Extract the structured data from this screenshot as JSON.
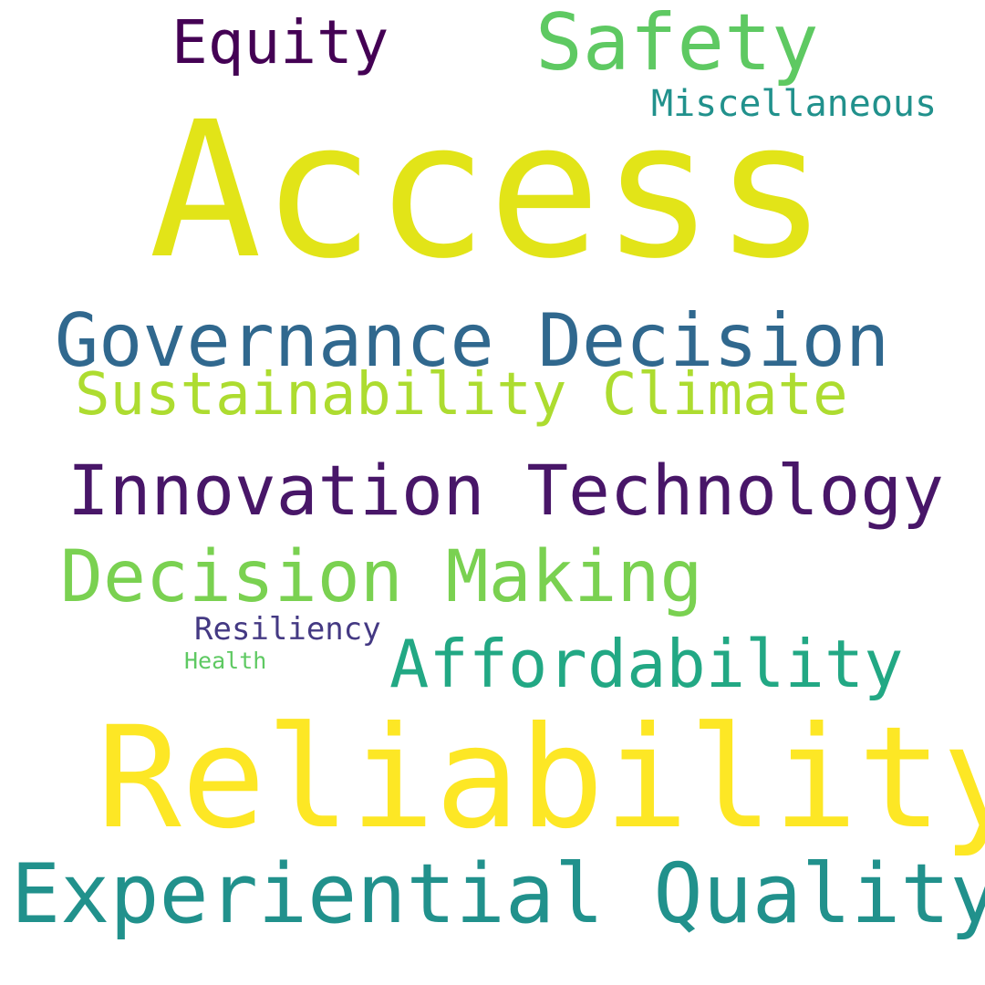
{
  "words": {
    "access": {
      "text": "Access",
      "color": "#e2e418"
    },
    "equity": {
      "text": "Equity",
      "color": "#440154"
    },
    "safety": {
      "text": "Safety",
      "color": "#5ec962"
    },
    "misc": {
      "text": "Miscellaneous",
      "color": "#21918c"
    },
    "governance": {
      "text": "Governance Decision",
      "color": "#30688e"
    },
    "sustain": {
      "text": "Sustainability Climate",
      "color": "#addc30"
    },
    "innovation": {
      "text": "Innovation Technology",
      "color": "#481668"
    },
    "decmaking": {
      "text": "Decision Making",
      "color": "#7ad151"
    },
    "resiliency": {
      "text": "Resiliency",
      "color": "#443983"
    },
    "health": {
      "text": "Health",
      "color": "#5ec962"
    },
    "afford": {
      "text": "Affordability",
      "color": "#22a884"
    },
    "reliability": {
      "text": "Reliability",
      "color": "#fde725"
    },
    "experiential": {
      "text": "Experiential Quality",
      "color": "#21918c"
    }
  }
}
